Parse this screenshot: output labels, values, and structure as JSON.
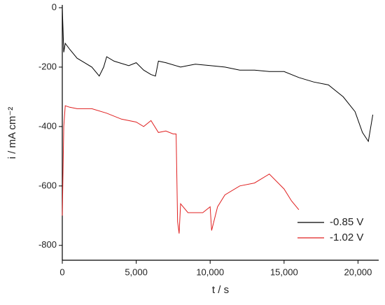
{
  "chart_data": {
    "type": "line",
    "xlabel": "t / s",
    "ylabel": "i / mA cm⁻²",
    "xlim": [
      0,
      21400
    ],
    "ylim": [
      -850,
      0
    ],
    "xticks": [
      0,
      {
        "value": 5000,
        "label": "5,000"
      },
      {
        "value": 10000,
        "label": "10,000"
      },
      {
        "value": 15000,
        "label": "15,000"
      },
      {
        "value": 20000,
        "label": "20,000"
      }
    ],
    "yticks": [
      0,
      -200,
      -400,
      -600,
      -800
    ],
    "grid": false,
    "legend": "lower-right",
    "series": [
      {
        "name": "-0.85 V",
        "color": "#000000",
        "x": [
          0,
          100,
          200,
          500,
          1000,
          1500,
          2000,
          2500,
          2800,
          3000,
          3500,
          4500,
          5000,
          5500,
          6000,
          6300,
          6500,
          7000,
          8000,
          8500,
          9000,
          10000,
          11000,
          12000,
          13000,
          14000,
          15000,
          16000,
          17000,
          18000,
          19000,
          19800,
          20300,
          20700,
          21000
        ],
        "values": [
          0,
          -150,
          -120,
          -140,
          -170,
          -185,
          -200,
          -230,
          -200,
          -165,
          -180,
          -195,
          -185,
          -210,
          -225,
          -230,
          -180,
          -185,
          -200,
          -195,
          -190,
          -195,
          -200,
          -210,
          -210,
          -215,
          -215,
          -235,
          -250,
          -260,
          -300,
          -350,
          -420,
          -450,
          -360
        ]
      },
      {
        "name": "-1.02 V",
        "color": "#e02020",
        "x": [
          0,
          100,
          200,
          500,
          1000,
          2000,
          3000,
          4000,
          5000,
          5500,
          6000,
          6500,
          7000,
          7500,
          7700,
          7800,
          7900,
          8000,
          8500,
          9000,
          9500,
          10000,
          10100,
          10500,
          11000,
          12000,
          13000,
          14000,
          15000,
          15500,
          16000
        ],
        "values": [
          -700,
          -400,
          -330,
          -335,
          -340,
          -340,
          -355,
          -375,
          -385,
          -400,
          -380,
          -420,
          -415,
          -425,
          -425,
          -720,
          -760,
          -660,
          -690,
          -690,
          -690,
          -670,
          -750,
          -670,
          -630,
          -600,
          -590,
          -560,
          -610,
          -650,
          -680
        ]
      }
    ]
  }
}
